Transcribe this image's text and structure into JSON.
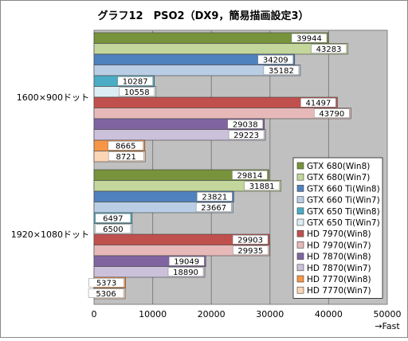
{
  "chart_data": {
    "type": "bar",
    "orientation": "horizontal",
    "title": "グラフ12　PSO2（DX9，簡易描画設定3）",
    "categories": [
      "1600×900ドット",
      "1920×1080ドット"
    ],
    "xlim": [
      0,
      50000
    ],
    "xticks": [
      0,
      10000,
      20000,
      30000,
      40000,
      50000
    ],
    "xlabel": "→Fast",
    "grid": true,
    "legend_position": "bottom-right",
    "series": [
      {
        "name": "GTX 680(Win8)",
        "values": [
          39944,
          29814
        ],
        "color": "#77933c"
      },
      {
        "name": "GTX 680(Win7)",
        "values": [
          43283,
          31881
        ],
        "color": "#c3d69b"
      },
      {
        "name": "GTX 660 Ti(Win8)",
        "values": [
          34209,
          23821
        ],
        "color": "#4f81bd"
      },
      {
        "name": "GTX 660 Ti(Win7)",
        "values": [
          35182,
          23667
        ],
        "color": "#b9cde5"
      },
      {
        "name": "GTX 650 Ti(Win8)",
        "values": [
          10287,
          6497
        ],
        "color": "#4bacc6"
      },
      {
        "name": "GTX 650 Ti(Win7)",
        "values": [
          10558,
          6500
        ],
        "color": "#dbeef4"
      },
      {
        "name": "HD 7970(Win8)",
        "values": [
          41497,
          29903
        ],
        "color": "#c0504d"
      },
      {
        "name": "HD 7970(Win7)",
        "values": [
          43790,
          29935
        ],
        "color": "#e6b9b8"
      },
      {
        "name": "HD 7870(Win8)",
        "values": [
          29038,
          19049
        ],
        "color": "#8064a2"
      },
      {
        "name": "HD 7870(Win7)",
        "values": [
          29223,
          18890
        ],
        "color": "#ccc1da"
      },
      {
        "name": "HD 7770(Win8)",
        "values": [
          8665,
          5373
        ],
        "color": "#f79646"
      },
      {
        "name": "HD 7770(Win7)",
        "values": [
          8721,
          5306
        ],
        "color": "#fcd5b5"
      }
    ]
  }
}
